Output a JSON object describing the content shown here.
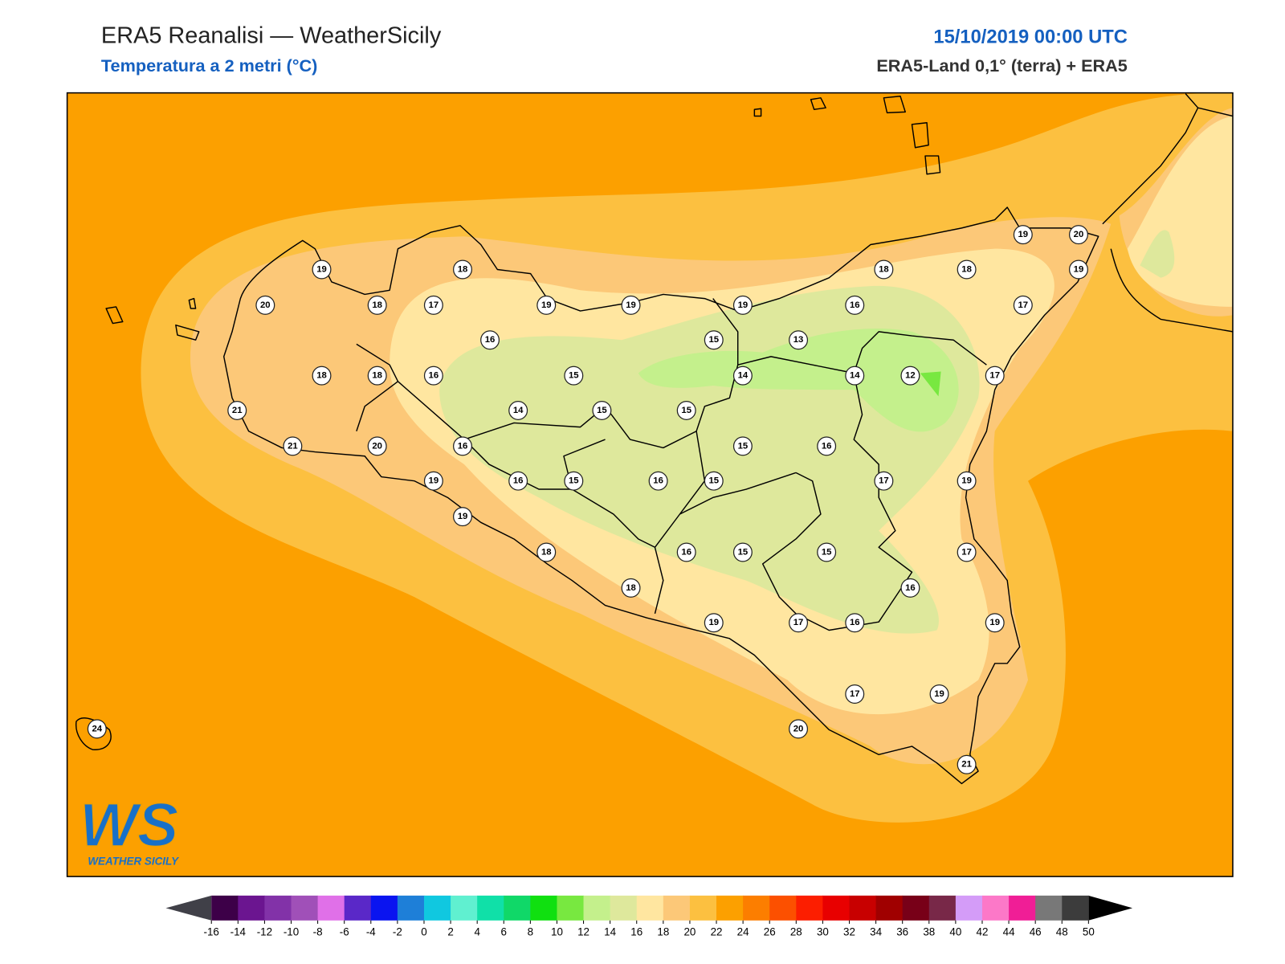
{
  "header": {
    "title": "ERA5 Reanalisi — WeatherSicily",
    "subtitle": "Temperatura a 2 metri (°C)",
    "datetime": "15/10/2019 00:00 UTC",
    "source": "ERA5-Land 0,1° (terra) + ERA5"
  },
  "stations": [
    19,
    18,
    20,
    18,
    17,
    19,
    19,
    19,
    16,
    18,
    18,
    19,
    20,
    19,
    17,
    16,
    15,
    13,
    18,
    18,
    16,
    15,
    14,
    14,
    12,
    17,
    21,
    14,
    15,
    15,
    21,
    20,
    16,
    15,
    16,
    19,
    16,
    15,
    16,
    15,
    17,
    19,
    19,
    18,
    16,
    15,
    15,
    17,
    18,
    16,
    19,
    17,
    16,
    19,
    17,
    19,
    20,
    21,
    24
  ],
  "colorbar": {
    "ticks": [
      -16,
      -14,
      -12,
      -10,
      -8,
      -6,
      -4,
      -2,
      0,
      2,
      4,
      6,
      8,
      10,
      12,
      14,
      16,
      18,
      20,
      22,
      24,
      26,
      28,
      30,
      32,
      34,
      36,
      38,
      40,
      42,
      44,
      46,
      48,
      50
    ],
    "colors": [
      "#3d0048",
      "#6b1590",
      "#8232a8",
      "#a050b8",
      "#e070e8",
      "#5a28c8",
      "#0a14f0",
      "#1e7fd8",
      "#10c8e0",
      "#60f0d0",
      "#10e0a8",
      "#10d868",
      "#10e010",
      "#78e840",
      "#c4f08c",
      "#dee89c",
      "#ffe6a0",
      "#fcc878",
      "#fcc040",
      "#fca000",
      "#fc7e00",
      "#fc5000",
      "#fc1e00",
      "#e80000",
      "#c80000",
      "#a00000",
      "#780018",
      "#782848",
      "#d49cf8",
      "#fc78c8",
      "#f01e96",
      "#787878",
      "#3c3c3c"
    ],
    "under_color": "#404048",
    "over_color": "#000000"
  },
  "logo": {
    "mark": "WS",
    "text": "WEATHER SICILY"
  }
}
